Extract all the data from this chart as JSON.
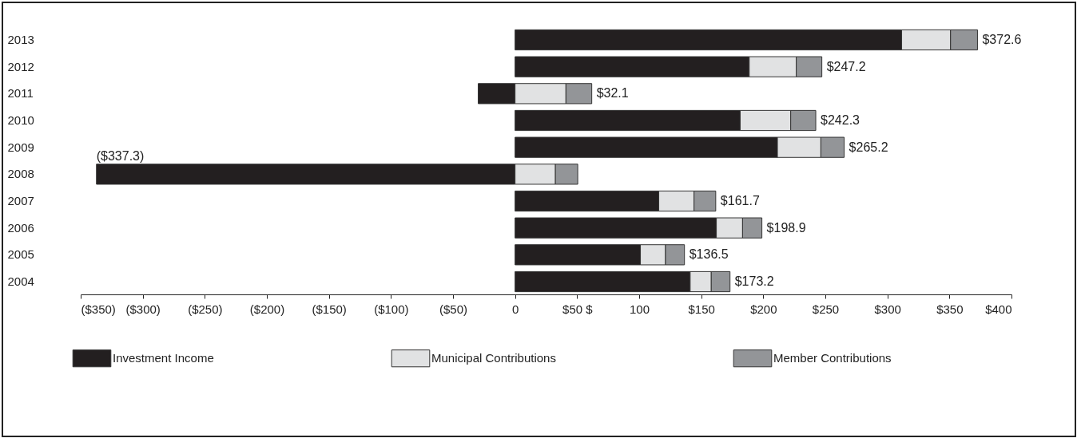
{
  "chart_data": {
    "type": "bar",
    "orientation": "horizontal",
    "stacked": true,
    "categories": [
      "2013",
      "2012",
      "2011",
      "2010",
      "2009",
      "2008",
      "2007",
      "2006",
      "2005",
      "2004"
    ],
    "series": [
      {
        "name": "Investment Income",
        "color": "#231f20",
        "values": [
          311.5,
          188.7,
          -29.7,
          181.4,
          211.4,
          -337.3,
          115.8,
          162.2,
          101,
          141.1
        ],
        "value_labels": [
          null,
          null,
          null,
          null,
          null,
          "($337.3)",
          null,
          null,
          null,
          null
        ]
      },
      {
        "name": "Municipal Contributions",
        "color": "#e1e2e3",
        "values": [
          39.4,
          37.9,
          41,
          40.7,
          35,
          32.5,
          28.4,
          21.1,
          20.2,
          17
        ]
      },
      {
        "name": "Member Contributions",
        "color": "#939598",
        "values": [
          21.7,
          20.6,
          20.8,
          20.2,
          18.8,
          18,
          17.5,
          15.6,
          15.3,
          15.1
        ]
      }
    ],
    "totals": [
      "$372.6",
      "$247.2",
      "$32.1",
      "$242.3",
      "$265.2",
      null,
      "$161.7",
      "$198.9",
      "$136.5",
      "$173.2"
    ],
    "xlim": [
      -350,
      400
    ],
    "xticks": [
      {
        "value": -350,
        "label": "($350)"
      },
      {
        "value": -300,
        "label": "($300)"
      },
      {
        "value": -250,
        "label": "($250)"
      },
      {
        "value": -200,
        "label": "($200)"
      },
      {
        "value": -150,
        "label": "($150)"
      },
      {
        "value": -100,
        "label": "($100)"
      },
      {
        "value": -50,
        "label": "($50)"
      },
      0,
      {
        "value": 50,
        "label": "$50 $"
      },
      100,
      {
        "value": 150,
        "label": "$150"
      },
      {
        "value": 200,
        "label": "$200"
      },
      {
        "value": 250,
        "label": "$250"
      },
      {
        "value": 300,
        "label": "$300"
      },
      {
        "value": 350,
        "label": "$350"
      },
      {
        "value": 400,
        "label": "$400"
      }
    ],
    "legend": "bottom",
    "grid": false
  }
}
